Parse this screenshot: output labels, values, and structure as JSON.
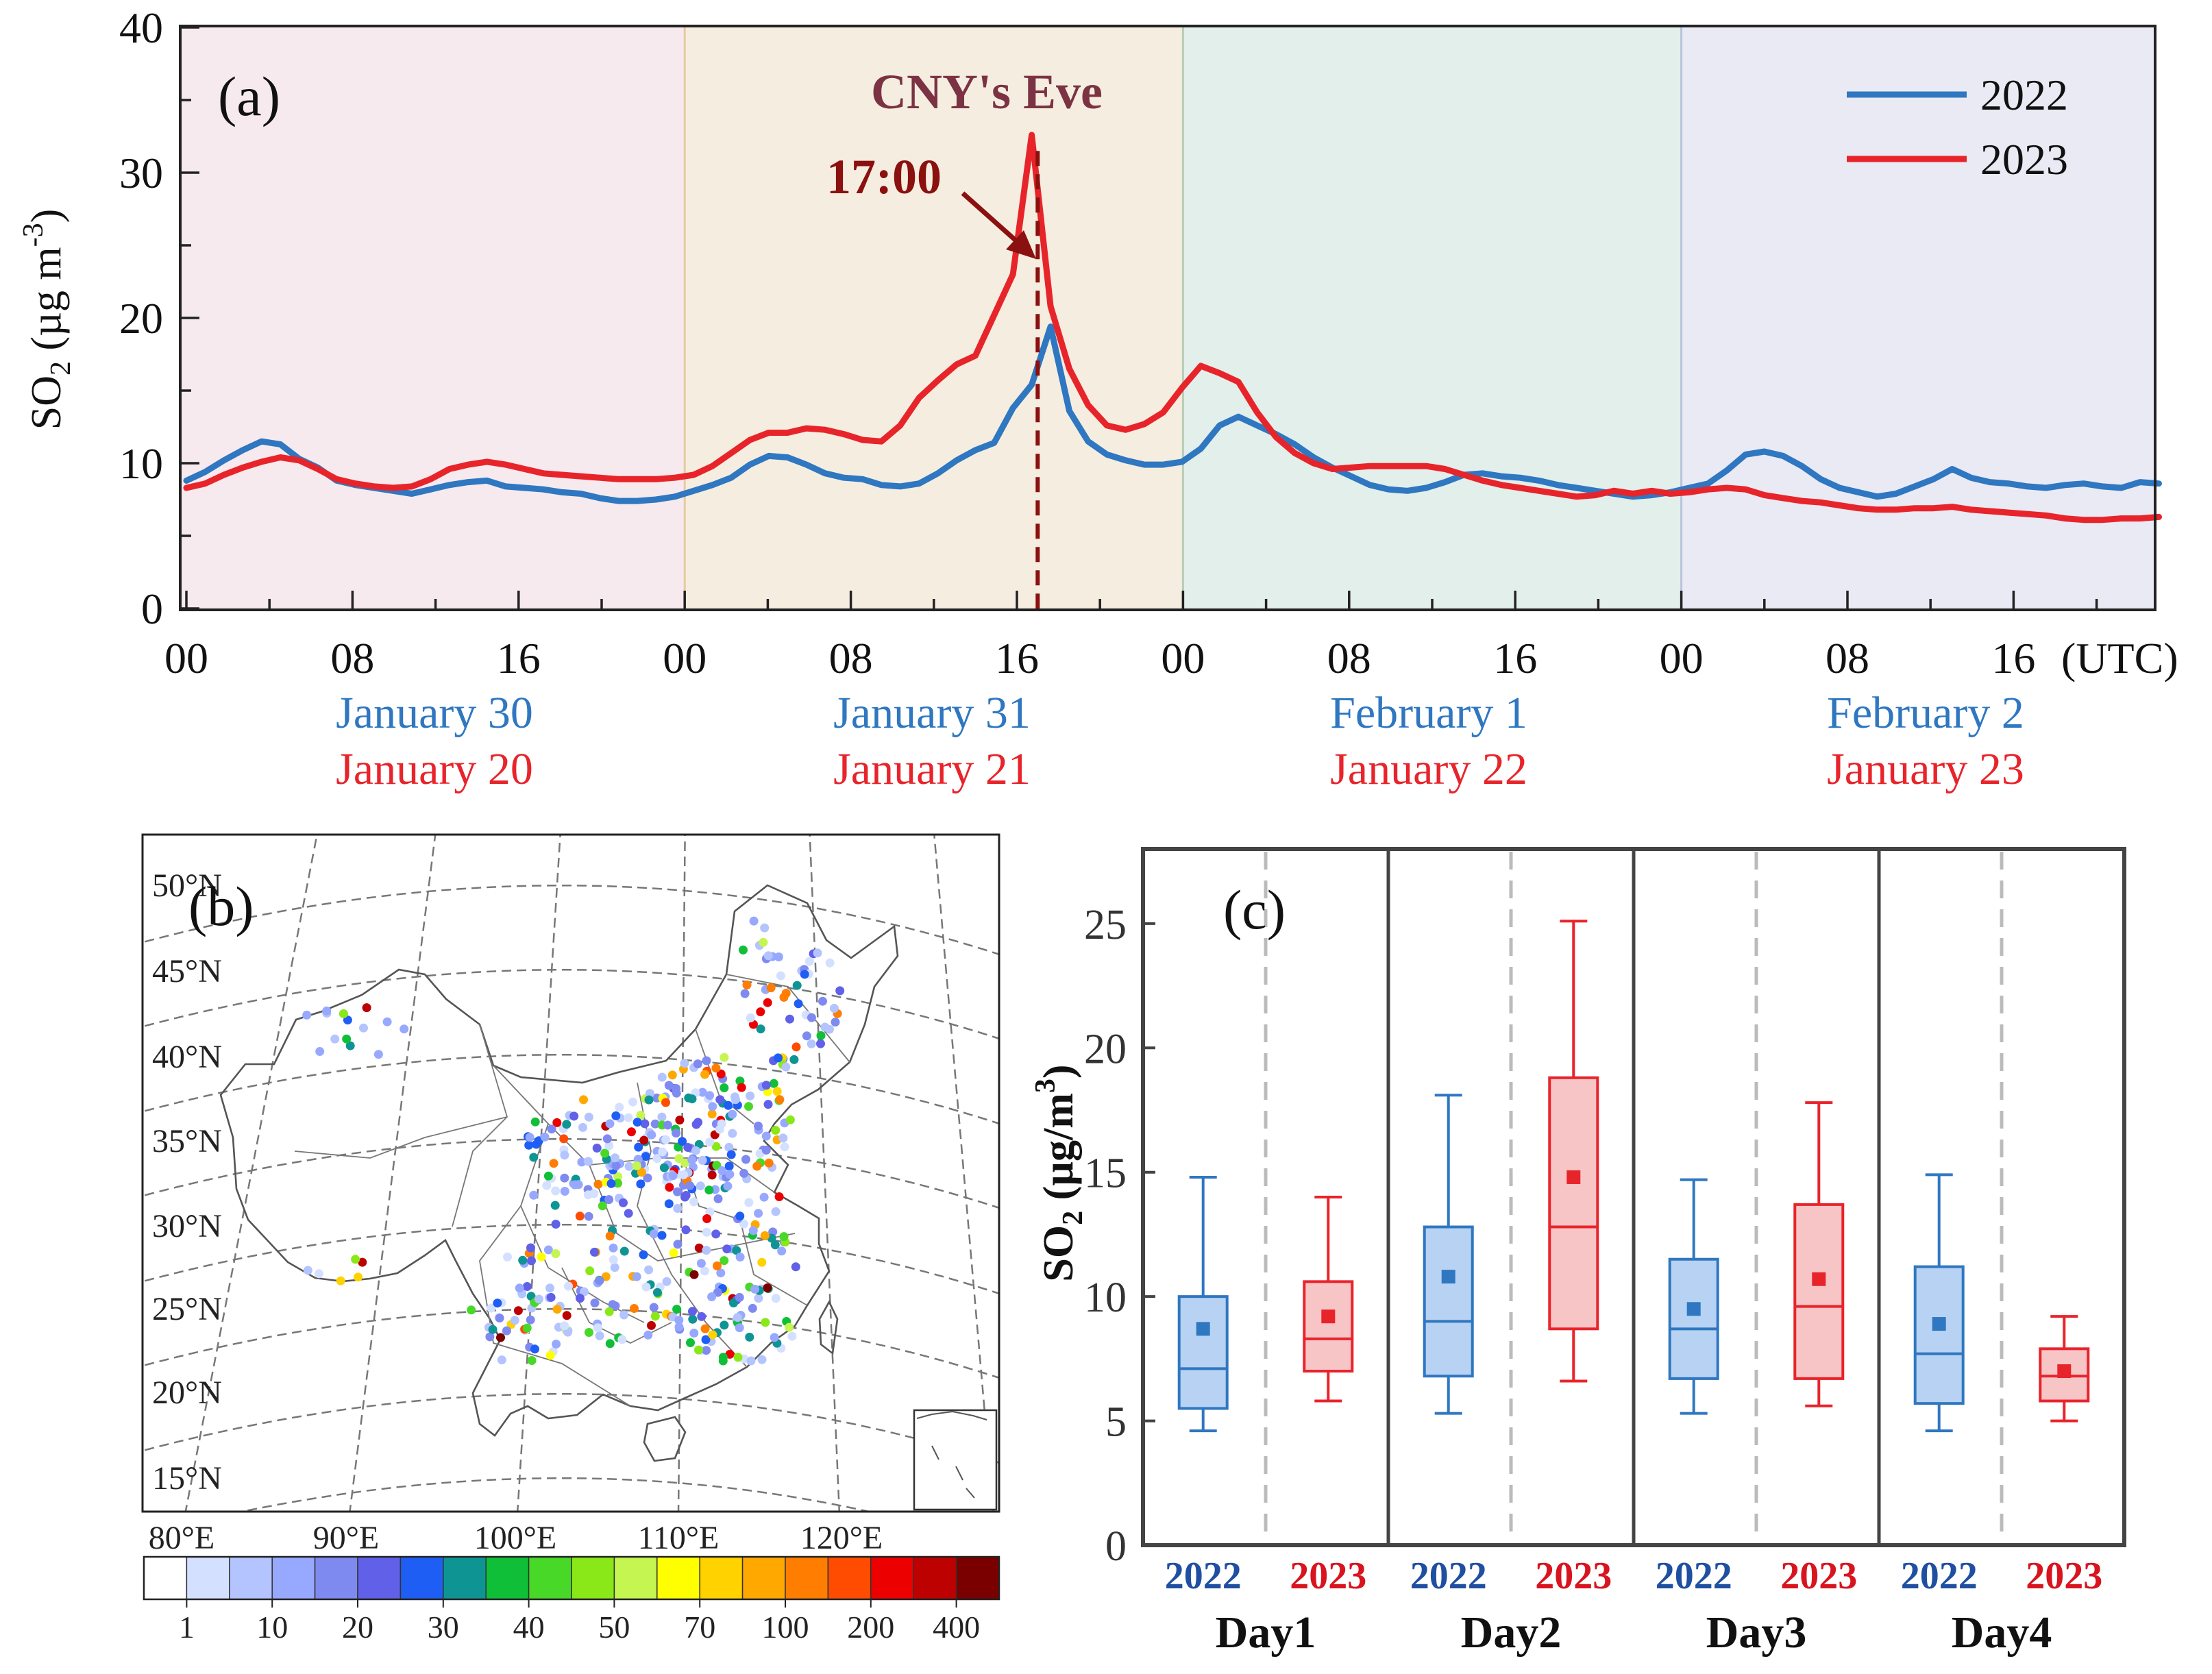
{
  "colors": {
    "y2022": "#2f77c0",
    "y2023": "#e8242b",
    "y2022_dark": "#1f4fa0",
    "y2023_dark": "#d8141e",
    "cny": "#7b3343",
    "arrow": "#8b1010",
    "bg_day1": "#f7eaee",
    "bg_day2": "#f5eee0",
    "bg_day3": "#e3efea",
    "bg_day4": "#eaeaf4",
    "box2022_fill": "#b7d2f2",
    "box2023_fill": "#f8c5c7"
  },
  "chart_data": [
    {
      "id": "a",
      "type": "line",
      "panel_label": "(a)",
      "ylabel_main": "SO",
      "ylabel_sub": "2",
      "ylabel_unit_open": " (µg m",
      "ylabel_unit_exp": "-3",
      "ylabel_unit_close": ")",
      "ylim": [
        0,
        40
      ],
      "yticks": [
        "0",
        "10",
        "20",
        "30",
        "40"
      ],
      "xlim_hours": [
        0,
        95
      ],
      "xtick_labels": [
        "00",
        "08",
        "16",
        "00",
        "08",
        "16",
        "00",
        "08",
        "16",
        "00",
        "08",
        "16"
      ],
      "xtick_hours": [
        0,
        8,
        16,
        24,
        32,
        40,
        48,
        56,
        64,
        72,
        80,
        88
      ],
      "xunit": "(UTC)",
      "dates_2022": [
        "January 30",
        "January 31",
        "February 1",
        "February 2"
      ],
      "dates_2023": [
        "January 20",
        "January 21",
        "January 22",
        "January 23"
      ],
      "annotation_title": "CNY's Eve",
      "annotation_time": "17:00",
      "annotation_hour": 41,
      "legend": [
        "2022",
        "2023"
      ],
      "series": [
        {
          "name": "2022",
          "values": [
            8.8,
            9.4,
            10.2,
            10.9,
            11.5,
            11.3,
            10.3,
            9.7,
            8.8,
            8.5,
            8.3,
            8.1,
            7.9,
            8.2,
            8.5,
            8.7,
            8.8,
            8.4,
            8.3,
            8.2,
            8.0,
            7.9,
            7.6,
            7.4,
            7.4,
            7.5,
            7.7,
            8.1,
            8.5,
            9.0,
            9.9,
            10.5,
            10.4,
            9.9,
            9.3,
            9.0,
            8.9,
            8.5,
            8.4,
            8.6,
            9.3,
            10.2,
            10.9,
            11.4,
            13.8,
            15.4,
            19.4,
            13.6,
            11.5,
            10.6,
            10.2,
            9.9,
            9.9,
            10.1,
            11.0,
            12.6,
            13.2,
            12.6,
            12.0,
            11.3,
            10.4,
            9.7,
            9.1,
            8.5,
            8.2,
            8.1,
            8.3,
            8.7,
            9.2,
            9.3,
            9.1,
            9.0,
            8.8,
            8.5,
            8.3,
            8.1,
            7.9,
            7.7,
            7.8,
            8.0,
            8.3,
            8.6,
            9.5,
            10.6,
            10.8,
            10.5,
            9.8,
            8.9,
            8.3,
            8.0,
            7.7,
            7.9,
            8.4,
            8.9,
            9.6,
            9.0,
            8.7,
            8.6,
            8.4,
            8.3,
            8.5,
            8.6,
            8.4,
            8.3,
            8.7,
            8.6
          ]
        },
        {
          "name": "2023",
          "values": [
            8.3,
            8.6,
            9.2,
            9.7,
            10.1,
            10.4,
            10.2,
            9.6,
            8.9,
            8.6,
            8.4,
            8.3,
            8.4,
            8.9,
            9.6,
            9.9,
            10.1,
            9.9,
            9.6,
            9.3,
            9.2,
            9.1,
            9.0,
            8.9,
            8.9,
            8.9,
            9.0,
            9.2,
            9.8,
            10.7,
            11.6,
            12.1,
            12.1,
            12.4,
            12.3,
            12.0,
            11.6,
            11.5,
            12.6,
            14.5,
            15.7,
            16.8,
            17.4,
            20.2,
            23.0,
            32.6,
            20.8,
            16.5,
            14.0,
            12.6,
            12.3,
            12.7,
            13.5,
            15.2,
            16.7,
            16.2,
            15.6,
            13.5,
            11.8,
            10.7,
            10.0,
            9.6,
            9.7,
            9.8,
            9.8,
            9.8,
            9.8,
            9.6,
            9.2,
            8.8,
            8.5,
            8.3,
            8.1,
            7.9,
            7.7,
            7.8,
            8.1,
            7.9,
            8.1,
            7.9,
            8.0,
            8.2,
            8.3,
            8.2,
            7.8,
            7.6,
            7.4,
            7.3,
            7.1,
            6.9,
            6.8,
            6.8,
            6.9,
            6.9,
            7.0,
            6.8,
            6.7,
            6.6,
            6.5,
            6.4,
            6.2,
            6.1,
            6.1,
            6.2,
            6.2,
            6.3
          ]
        }
      ]
    },
    {
      "id": "b",
      "type": "scatter",
      "panel_label": "(b)",
      "lat_labels": [
        "50°N",
        "45°N",
        "40°N",
        "35°N",
        "30°N",
        "25°N",
        "20°N",
        "15°N"
      ],
      "lon_labels": [
        "80°E",
        "90°E",
        "100°E",
        "110°E",
        "120°E"
      ],
      "colorbar_labels": [
        "1",
        "10",
        "20",
        "30",
        "40",
        "50",
        "70",
        "100",
        "200",
        "400"
      ],
      "colorbar_colors": [
        "#ffffff",
        "#d4e0ff",
        "#b3c4ff",
        "#97a8ff",
        "#7f8af0",
        "#6060e8",
        "#1e5ef5",
        "#0f9494",
        "#10bf38",
        "#48d828",
        "#8ae818",
        "#c5f550",
        "#ffff00",
        "#ffd200",
        "#ffa800",
        "#ff7d00",
        "#ff4c00",
        "#ec0000",
        "#bd0000",
        "#7a0000"
      ]
    },
    {
      "id": "c",
      "type": "box",
      "panel_label": "(c)",
      "ylabel_main": "SO",
      "ylabel_sub": "2",
      "ylabel_unit_open": " (µg/m",
      "ylabel_unit_exp": "3",
      "ylabel_unit_close": ")",
      "ylim": [
        0,
        28
      ],
      "yticks": [
        "0",
        "5",
        "10",
        "15",
        "20",
        "25"
      ],
      "days": [
        "Day1",
        "Day2",
        "Day3",
        "Day4"
      ],
      "series_labels": [
        "2022",
        "2023"
      ],
      "boxes": [
        {
          "day": "Day1",
          "year": "2022",
          "min": 4.6,
          "q1": 5.5,
          "median": 7.1,
          "q3": 10.0,
          "max": 14.8,
          "mean": 8.7
        },
        {
          "day": "Day1",
          "year": "2023",
          "min": 5.8,
          "q1": 7.0,
          "median": 8.3,
          "q3": 10.6,
          "max": 14.0,
          "mean": 9.2
        },
        {
          "day": "Day2",
          "year": "2022",
          "min": 5.3,
          "q1": 6.8,
          "median": 9.0,
          "q3": 12.8,
          "max": 18.1,
          "mean": 10.8
        },
        {
          "day": "Day2",
          "year": "2023",
          "min": 6.6,
          "q1": 8.7,
          "median": 12.8,
          "q3": 18.8,
          "max": 25.1,
          "mean": 14.8
        },
        {
          "day": "Day3",
          "year": "2022",
          "min": 5.3,
          "q1": 6.7,
          "median": 8.7,
          "q3": 11.5,
          "max": 14.7,
          "mean": 9.5
        },
        {
          "day": "Day3",
          "year": "2023",
          "min": 5.6,
          "q1": 6.7,
          "median": 9.6,
          "q3": 13.7,
          "max": 17.8,
          "mean": 10.7
        },
        {
          "day": "Day4",
          "year": "2022",
          "min": 4.6,
          "q1": 5.7,
          "median": 7.7,
          "q3": 11.2,
          "max": 14.9,
          "mean": 8.9
        },
        {
          "day": "Day4",
          "year": "2023",
          "min": 5.0,
          "q1": 5.8,
          "median": 6.8,
          "q3": 7.9,
          "max": 9.2,
          "mean": 7.0
        }
      ]
    }
  ]
}
